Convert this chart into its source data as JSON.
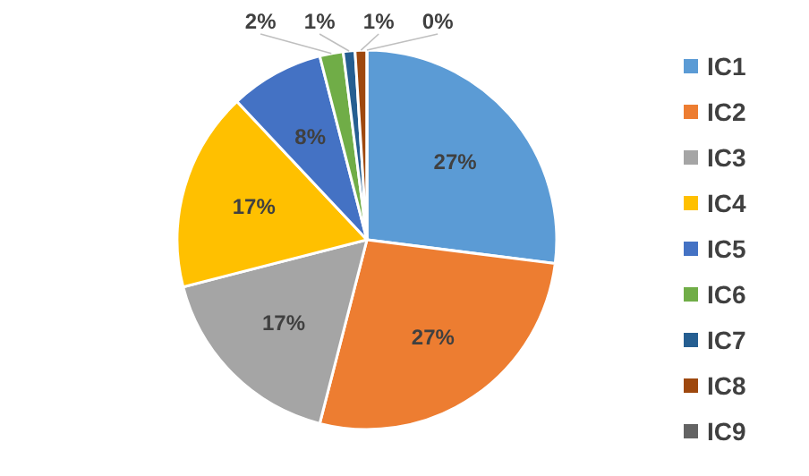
{
  "chart_data": {
    "type": "pie",
    "categories": [
      "IC1",
      "IC2",
      "IC3",
      "IC4",
      "IC5",
      "IC6",
      "IC7",
      "IC8",
      "IC9"
    ],
    "values": [
      27,
      27,
      17,
      17,
      8,
      2,
      1,
      1,
      0
    ],
    "colors": [
      "#5b9bd5",
      "#ed7d31",
      "#a5a5a5",
      "#ffc000",
      "#4472c4",
      "#70ad47",
      "#255e91",
      "#9e480e",
      "#636363"
    ],
    "value_labels": [
      "27%",
      "27%",
      "17%",
      "17%",
      "8%",
      "2%",
      "1%",
      "1%",
      "0%"
    ],
    "legend": "right"
  }
}
